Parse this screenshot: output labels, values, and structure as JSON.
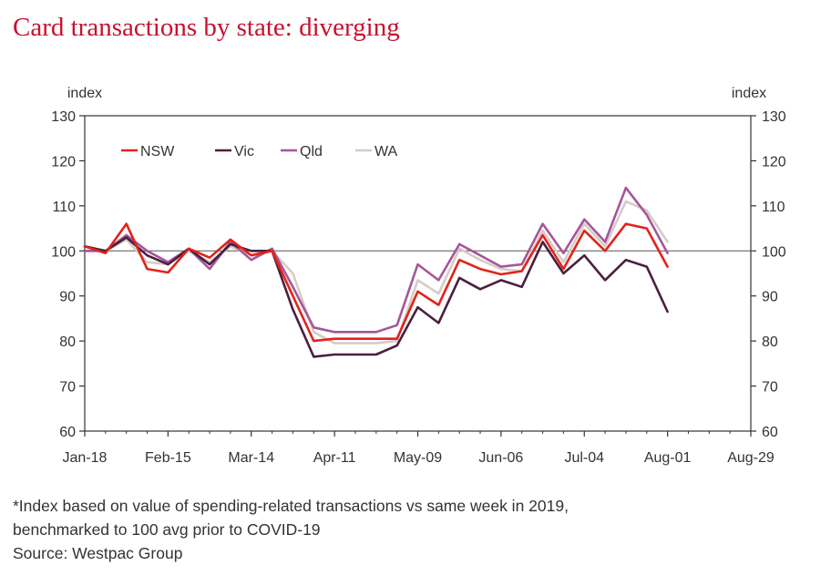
{
  "title": "Card transactions by state: diverging",
  "footnote": {
    "line1": "*Index based on value of spending-related transactions vs same week in 2019,",
    "line2": "benchmarked to 100 avg prior to COVID-19",
    "source": "Source: Westpac Group"
  },
  "chart_data": {
    "type": "line",
    "ylabel_left": "index",
    "ylabel_right": "index",
    "ylim": [
      60,
      130
    ],
    "yticks": [
      60,
      70,
      80,
      90,
      100,
      110,
      120,
      130
    ],
    "reference_line": 100,
    "x_tick_labels": [
      "Jan-18",
      "Feb-15",
      "Mar-14",
      "Apr-11",
      "May-09",
      "Jun-06",
      "Jul-04",
      "Aug-01",
      "Aug-29"
    ],
    "weeks_per_tick": 4,
    "legend_position": "top-left",
    "series": [
      {
        "name": "NSW",
        "color": "#e2231a",
        "values": [
          101,
          99.5,
          106,
          96,
          95.2,
          100.5,
          98.5,
          102.5,
          99,
          100,
          90,
          80,
          80.5,
          80.5,
          80.5,
          80.5,
          91,
          88,
          98,
          96,
          94.8,
          95.5,
          103.5,
          96,
          104.5,
          100,
          106,
          105,
          96.5
        ]
      },
      {
        "name": "Vic",
        "color": "#4a1f3f",
        "values": [
          101,
          100,
          103,
          99,
          97,
          100.5,
          97,
          101.5,
          100,
          100,
          87,
          76.5,
          77,
          77,
          77,
          79,
          87.5,
          84,
          94,
          91.5,
          93.5,
          92,
          102,
          95,
          99,
          93.5,
          98,
          96.5,
          86.5
        ]
      },
      {
        "name": "Qld",
        "color": "#a65698",
        "values": [
          100,
          100,
          103.5,
          100,
          97.5,
          100.5,
          96,
          102,
          98,
          100.5,
          92,
          83,
          82,
          82,
          82,
          83.5,
          97,
          93.5,
          101.5,
          99,
          96.5,
          97,
          106,
          99.5,
          107,
          102,
          114,
          108,
          99.5
        ]
      },
      {
        "name": "WA",
        "color": "#d4cdc8",
        "values": [
          100,
          100,
          102.5,
          97.5,
          97,
          100,
          97.5,
          101,
          99,
          100,
          95,
          82,
          79.5,
          79.5,
          79.5,
          80,
          93.5,
          90.5,
          100.5,
          98,
          96,
          95.5,
          104.5,
          97.5,
          106,
          101,
          111,
          109,
          102
        ]
      }
    ]
  }
}
